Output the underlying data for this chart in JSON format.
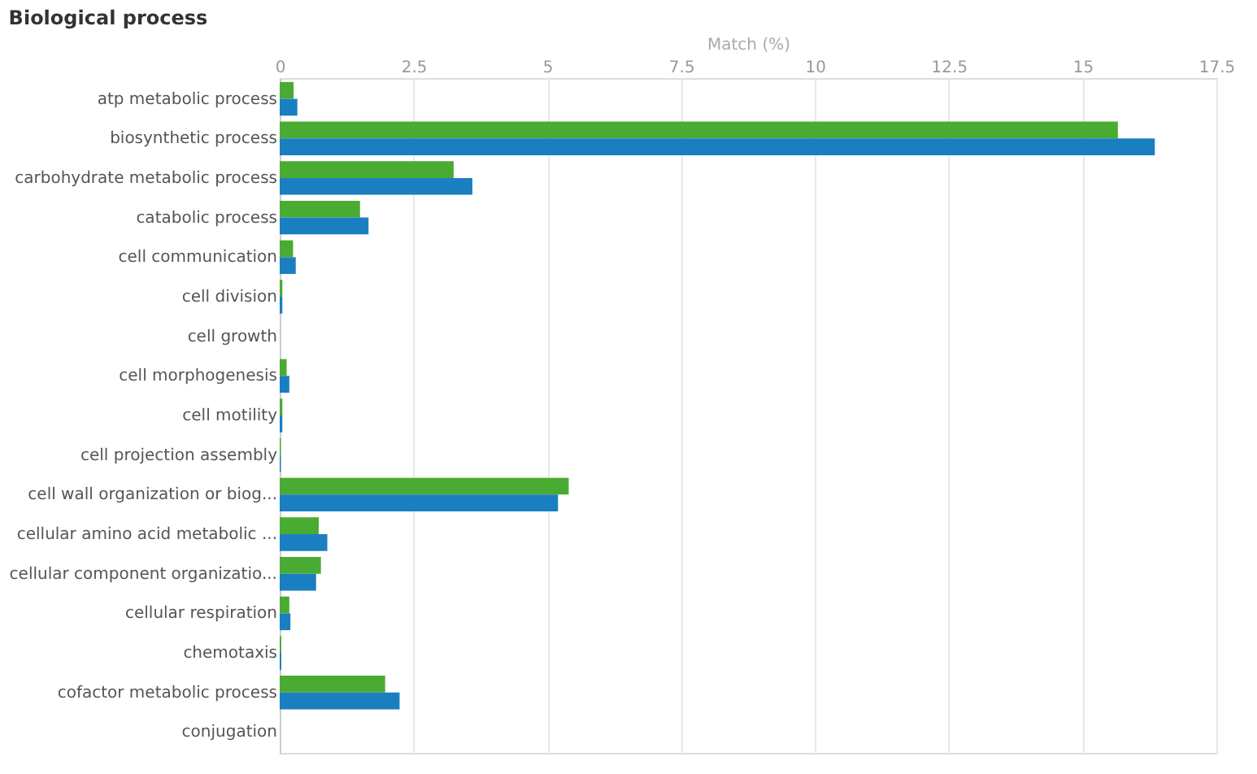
{
  "chart_data": {
    "type": "bar",
    "orientation": "horizontal",
    "title": "Biological process",
    "xlabel": "Match (%)",
    "categories": [
      "atp metabolic process",
      "biosynthetic process",
      "carbohydrate metabolic process",
      "catabolic process",
      "cell communication",
      "cell division",
      "cell growth",
      "cell morphogenesis",
      "cell motility",
      "cell projection assembly",
      "cell wall organization or biog...",
      "cellular amino acid metabolic ...",
      "cellular component organizatio...",
      "cellular respiration",
      "chemotaxis",
      "cofactor metabolic process",
      "conjugation"
    ],
    "series": [
      {
        "color": "#4aab33",
        "values": [
          0.26,
          15.66,
          3.25,
          1.5,
          0.25,
          0.05,
          0,
          0.13,
          0.05,
          0.02,
          5.4,
          0.73,
          0.77,
          0.18,
          0.03,
          1.97,
          null
        ]
      },
      {
        "color": "#1a7fc0",
        "values": [
          0.33,
          16.35,
          3.6,
          1.66,
          0.3,
          0.05,
          0,
          0.18,
          0.05,
          0.02,
          5.2,
          0.89,
          0.68,
          0.2,
          0.03,
          2.24,
          null
        ]
      }
    ],
    "xlim": [
      0,
      17.5
    ],
    "xticks": [
      0,
      2.5,
      5,
      7.5,
      10,
      12.5,
      15,
      17.5
    ],
    "grid": "x",
    "legend": false
  }
}
